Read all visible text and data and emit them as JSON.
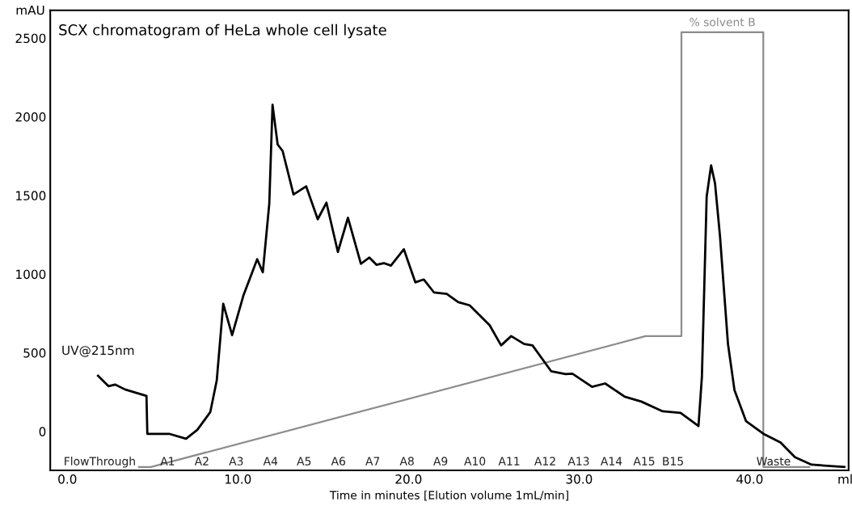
{
  "chart_data": {
    "type": "line",
    "title": "SCX chromatogram of HeLa whole cell lysate",
    "xlabel": "Time in minutes [Elution volume 1mL/min]",
    "ylabel": "mAU",
    "xlim": [
      -1.0,
      45.8
    ],
    "xticks": [
      {
        "value": 0,
        "label": "0.0"
      },
      {
        "value": 10,
        "label": "10.0"
      },
      {
        "value": 20,
        "label": "20.0"
      },
      {
        "value": 30,
        "label": "30.0"
      },
      {
        "value": 40,
        "label": "40.0"
      },
      {
        "value": 45.6,
        "label": "ml"
      }
    ],
    "ylim": [
      -247,
      2677
    ],
    "yticks": [
      0,
      500,
      1000,
      1500,
      2000,
      2500
    ],
    "grid": false,
    "legend": false,
    "line_style": "solid",
    "marker": "none",
    "series": [
      {
        "name": "UV@215nm",
        "color": "#000000",
        "x": [
          1.8,
          2.41,
          2.8,
          3.38,
          4.64,
          4.69,
          5.97,
          6.96,
          7.62,
          8.38,
          8.76,
          9.14,
          9.66,
          10.32,
          11.13,
          11.46,
          11.84,
          12.03,
          12.33,
          12.62,
          13.26,
          14.0,
          14.68,
          15.19,
          15.86,
          16.45,
          17.21,
          17.71,
          18.13,
          18.55,
          18.97,
          19.73,
          20.4,
          20.9,
          21.49,
          22.24,
          22.92,
          23.58,
          24.76,
          25.43,
          26.02,
          26.78,
          27.27,
          28.36,
          29.21,
          29.61,
          30.76,
          31.53,
          32.68,
          33.65,
          34.9,
          35.95,
          37.0,
          37.2,
          37.48,
          37.74,
          37.97,
          38.26,
          38.73,
          39.11,
          39.79,
          40.85,
          41.81,
          42.66,
          43.63,
          45.55
        ],
        "values": [
          354,
          288,
          298,
          267,
          226,
          -15,
          -15,
          -46,
          10,
          123,
          324,
          812,
          612,
          863,
          1095,
          1012,
          1449,
          2076,
          1824,
          1783,
          1506,
          1558,
          1349,
          1454,
          1141,
          1358,
          1066,
          1105,
          1059,
          1070,
          1054,
          1158,
          948,
          966,
          884,
          875,
          822,
          802,
          675,
          547,
          606,
          556,
          547,
          383,
          365,
          367,
          284,
          305,
          221,
          190,
          128,
          118,
          34,
          347,
          1493,
          1691,
          1577,
          1243,
          555,
          263,
          65,
          -18,
          -70,
          -164,
          -211,
          -226
        ]
      },
      {
        "name": "% solvent B",
        "color": "#8c8c8c",
        "x": [
          4.2,
          4.9,
          33.9,
          36.0,
          36.0,
          40.8,
          40.8,
          43.5
        ],
        "values": [
          -226,
          -226,
          606,
          606,
          2538,
          2538,
          -226,
          -226
        ]
      }
    ],
    "annotations": [
      "FlowThrough",
      "A1",
      "A2",
      "A3",
      "A4",
      "A5",
      "A6",
      "A7",
      "A8",
      "A9",
      "A10",
      "A11",
      "A12",
      "A13",
      "A14",
      "A15",
      "B15",
      "Waste"
    ]
  }
}
